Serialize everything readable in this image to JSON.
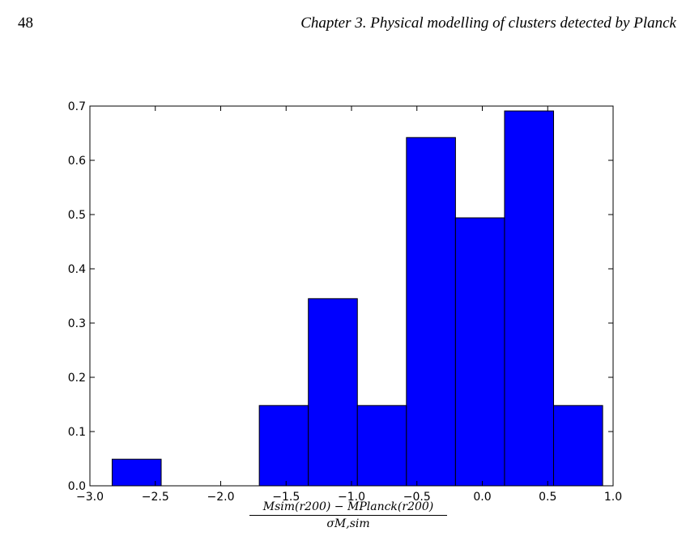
{
  "page": {
    "number": "48",
    "header": "Chapter 3.  Physical modelling of clusters detected by Planck"
  },
  "chart_data": {
    "type": "bar",
    "title": "",
    "xlabel_numerator": "Msim(r200) − MPlanck(r200)",
    "xlabel_denominator": "σM,sim",
    "ylabel": "",
    "xlim": [
      -3.0,
      1.0
    ],
    "ylim": [
      0.0,
      0.7
    ],
    "xticks": [
      "−3.0",
      "−2.5",
      "−2.0",
      "−1.5",
      "−1.0",
      "−0.5",
      "0.0",
      "0.5",
      "1.0"
    ],
    "xtick_values": [
      -3.0,
      -2.5,
      -2.0,
      -1.5,
      -1.0,
      -0.5,
      0.0,
      0.5,
      1.0
    ],
    "yticks": [
      "0.0",
      "0.1",
      "0.2",
      "0.3",
      "0.4",
      "0.5",
      "0.6",
      "0.7"
    ],
    "ytick_values": [
      0.0,
      0.1,
      0.2,
      0.3,
      0.4,
      0.5,
      0.6,
      0.7
    ],
    "bin_edges": [
      -2.83,
      -2.455,
      -2.08,
      -1.705,
      -1.33,
      -0.955,
      -0.58,
      -0.205,
      0.17,
      0.545,
      0.92
    ],
    "values": [
      0.049,
      0.0,
      0.0,
      0.148,
      0.345,
      0.148,
      0.642,
      0.494,
      0.691,
      0.148
    ],
    "bar_color": "#0000ff",
    "edge_color": "#000000",
    "grid": false
  }
}
